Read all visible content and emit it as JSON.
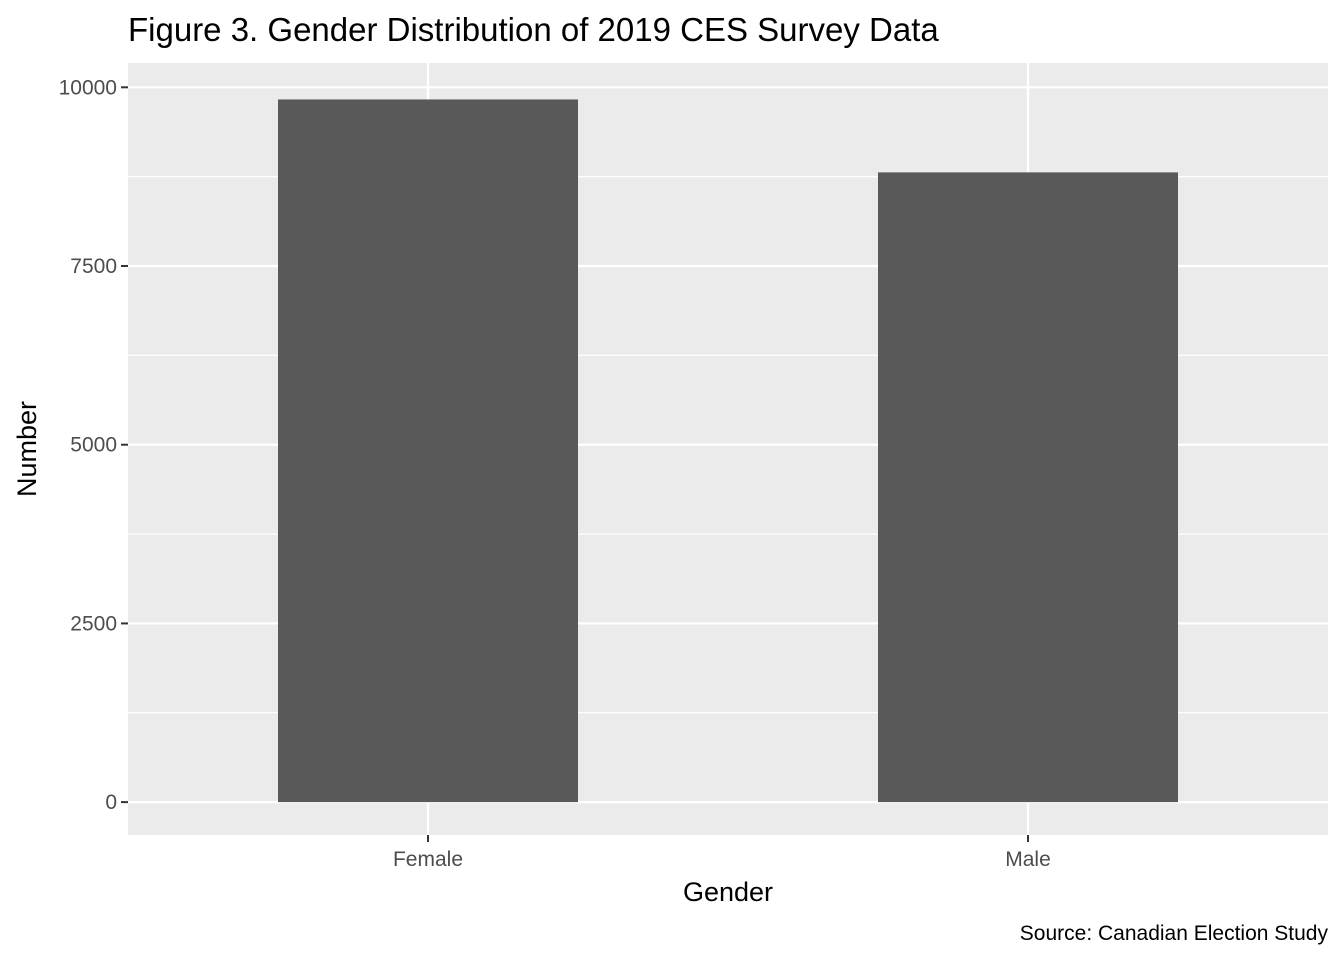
{
  "chart_data": {
    "type": "bar",
    "title": "Figure 3. Gender Distribution of 2019 CES Survey Data",
    "xlabel": "Gender",
    "ylabel": "Number",
    "caption": "Source: Canadian Election Study",
    "categories": [
      "Female",
      "Male"
    ],
    "values": [
      9830,
      8810
    ],
    "ylim": [
      -460,
      10340
    ],
    "yticks": [
      0,
      2500,
      5000,
      7500,
      10000
    ],
    "ytick_labels": [
      "0",
      "2500",
      "5000",
      "7500",
      "10000"
    ],
    "grid": true,
    "legend": "none",
    "colors": {
      "bar": "#595959",
      "panel_background": "#EBEBEB",
      "grid": "#FFFFFF",
      "tick_text": "#4D4D4D",
      "tick_mark": "#333333"
    }
  }
}
